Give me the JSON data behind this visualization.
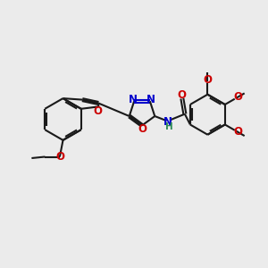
{
  "bg_color": "#ebebeb",
  "bond_color": "#1a1a1a",
  "bond_width": 1.5,
  "n_color": "#0000cc",
  "o_color": "#cc0000",
  "h_color": "#2e8b57",
  "font_size": 8.5,
  "fig_size": [
    3.0,
    3.0
  ],
  "dpi": 100,
  "xlim": [
    0,
    10
  ],
  "ylim": [
    1,
    9
  ]
}
